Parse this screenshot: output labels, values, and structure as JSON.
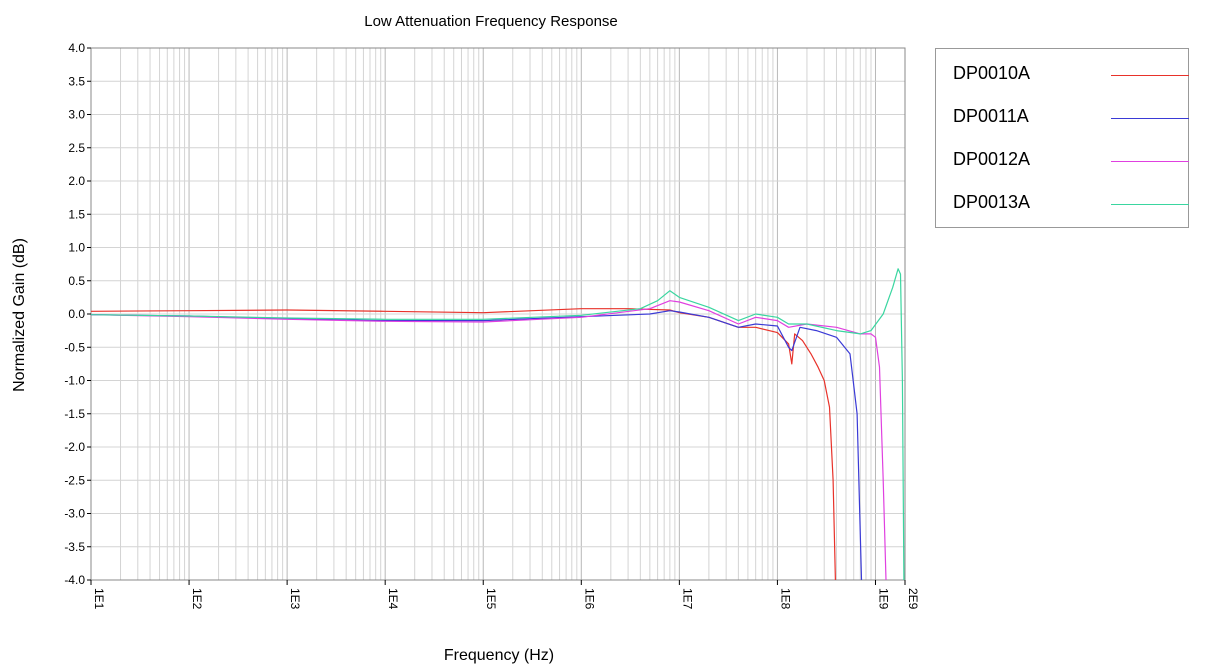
{
  "chart_data": {
    "type": "line",
    "title": "Low Attenuation Frequency Response",
    "xlabel": "Frequency (Hz)",
    "ylabel": "Normalized Gain (dB)",
    "x_scale": "log",
    "xlim": [
      10,
      2000000000
    ],
    "ylim": [
      -4.0,
      4.0
    ],
    "grid": true,
    "legend_position": "right-top",
    "x_ticks": [
      {
        "value": 10,
        "label": "1E1"
      },
      {
        "value": 100,
        "label": "1E2"
      },
      {
        "value": 1000,
        "label": "1E3"
      },
      {
        "value": 10000,
        "label": "1E4"
      },
      {
        "value": 100000,
        "label": "1E5"
      },
      {
        "value": 1000000,
        "label": "1E6"
      },
      {
        "value": 10000000,
        "label": "1E7"
      },
      {
        "value": 100000000,
        "label": "1E8"
      },
      {
        "value": 1000000000,
        "label": "1E9"
      },
      {
        "value": 2000000000,
        "label": "2E9"
      }
    ],
    "y_ticks": [
      {
        "value": 4.0,
        "label": "4.0"
      },
      {
        "value": 3.5,
        "label": "3.5"
      },
      {
        "value": 3.0,
        "label": "3.0"
      },
      {
        "value": 2.5,
        "label": "2.5"
      },
      {
        "value": 2.0,
        "label": "2.0"
      },
      {
        "value": 1.5,
        "label": "1.5"
      },
      {
        "value": 1.0,
        "label": "1.0"
      },
      {
        "value": 0.5,
        "label": "0.5"
      },
      {
        "value": 0.0,
        "label": "0.0"
      },
      {
        "value": -0.5,
        "label": "-0.5"
      },
      {
        "value": -1.0,
        "label": "-1.0"
      },
      {
        "value": -1.5,
        "label": "-1.5"
      },
      {
        "value": -2.0,
        "label": "-2.0"
      },
      {
        "value": -2.5,
        "label": "-2.5"
      },
      {
        "value": -3.0,
        "label": "-3.0"
      },
      {
        "value": -3.5,
        "label": "-3.5"
      },
      {
        "value": -4.0,
        "label": "-4.0"
      }
    ],
    "series": [
      {
        "name": "DP0010A",
        "color": "#e8322a",
        "points": [
          [
            10,
            0.04
          ],
          [
            100,
            0.05
          ],
          [
            1000,
            0.06
          ],
          [
            10000,
            0.04
          ],
          [
            100000,
            0.02
          ],
          [
            1000000,
            0.08
          ],
          [
            3000000,
            0.08
          ],
          [
            8000000,
            0.06
          ],
          [
            10000000,
            0.02
          ],
          [
            20000000,
            -0.05
          ],
          [
            40000000,
            -0.2
          ],
          [
            60000000,
            -0.2
          ],
          [
            100000000,
            -0.28
          ],
          [
            130000000,
            -0.45
          ],
          [
            140000000,
            -0.75
          ],
          [
            150000000,
            -0.3
          ],
          [
            180000000,
            -0.4
          ],
          [
            220000000,
            -0.6
          ],
          [
            260000000,
            -0.8
          ],
          [
            300000000,
            -1.0
          ],
          [
            340000000,
            -1.4
          ],
          [
            370000000,
            -2.5
          ],
          [
            390000000,
            -4.0
          ]
        ]
      },
      {
        "name": "DP0011A",
        "color": "#3a3ad6",
        "points": [
          [
            10,
            -0.01
          ],
          [
            100,
            -0.03
          ],
          [
            1000,
            -0.07
          ],
          [
            10000,
            -0.1
          ],
          [
            100000,
            -0.1
          ],
          [
            1000000,
            -0.04
          ],
          [
            5000000,
            0.0
          ],
          [
            8000000,
            0.05
          ],
          [
            10000000,
            0.03
          ],
          [
            20000000,
            -0.05
          ],
          [
            40000000,
            -0.2
          ],
          [
            60000000,
            -0.15
          ],
          [
            100000000,
            -0.18
          ],
          [
            130000000,
            -0.5
          ],
          [
            140000000,
            -0.55
          ],
          [
            170000000,
            -0.2
          ],
          [
            250000000,
            -0.25
          ],
          [
            400000000,
            -0.35
          ],
          [
            550000000,
            -0.6
          ],
          [
            650000000,
            -1.5
          ],
          [
            720000000,
            -4.0
          ]
        ]
      },
      {
        "name": "DP0012A",
        "color": "#e040e0",
        "points": [
          [
            10,
            -0.01
          ],
          [
            100,
            -0.04
          ],
          [
            1000,
            -0.08
          ],
          [
            10000,
            -0.11
          ],
          [
            100000,
            -0.12
          ],
          [
            1000000,
            -0.05
          ],
          [
            5000000,
            0.08
          ],
          [
            8000000,
            0.2
          ],
          [
            10000000,
            0.18
          ],
          [
            20000000,
            0.05
          ],
          [
            40000000,
            -0.15
          ],
          [
            60000000,
            -0.05
          ],
          [
            100000000,
            -0.1
          ],
          [
            130000000,
            -0.2
          ],
          [
            200000000,
            -0.15
          ],
          [
            400000000,
            -0.2
          ],
          [
            700000000,
            -0.3
          ],
          [
            900000000,
            -0.3
          ],
          [
            1000000000,
            -0.35
          ],
          [
            1100000000,
            -0.8
          ],
          [
            1200000000,
            -2.5
          ],
          [
            1280000000,
            -4.0
          ]
        ]
      },
      {
        "name": "DP0013A",
        "color": "#3ad6a0",
        "points": [
          [
            10,
            -0.01
          ],
          [
            100,
            -0.03
          ],
          [
            1000,
            -0.06
          ],
          [
            10000,
            -0.08
          ],
          [
            100000,
            -0.08
          ],
          [
            1000000,
            -0.02
          ],
          [
            4000000,
            0.08
          ],
          [
            6000000,
            0.2
          ],
          [
            8000000,
            0.35
          ],
          [
            10000000,
            0.25
          ],
          [
            20000000,
            0.1
          ],
          [
            40000000,
            -0.1
          ],
          [
            60000000,
            0.0
          ],
          [
            100000000,
            -0.05
          ],
          [
            130000000,
            -0.15
          ],
          [
            200000000,
            -0.15
          ],
          [
            400000000,
            -0.25
          ],
          [
            700000000,
            -0.3
          ],
          [
            900000000,
            -0.25
          ],
          [
            1200000000,
            0.0
          ],
          [
            1500000000,
            0.4
          ],
          [
            1700000000,
            0.68
          ],
          [
            1800000000,
            0.6
          ],
          [
            1880000000,
            -1.0
          ],
          [
            1950000000,
            -4.0
          ]
        ]
      }
    ]
  }
}
